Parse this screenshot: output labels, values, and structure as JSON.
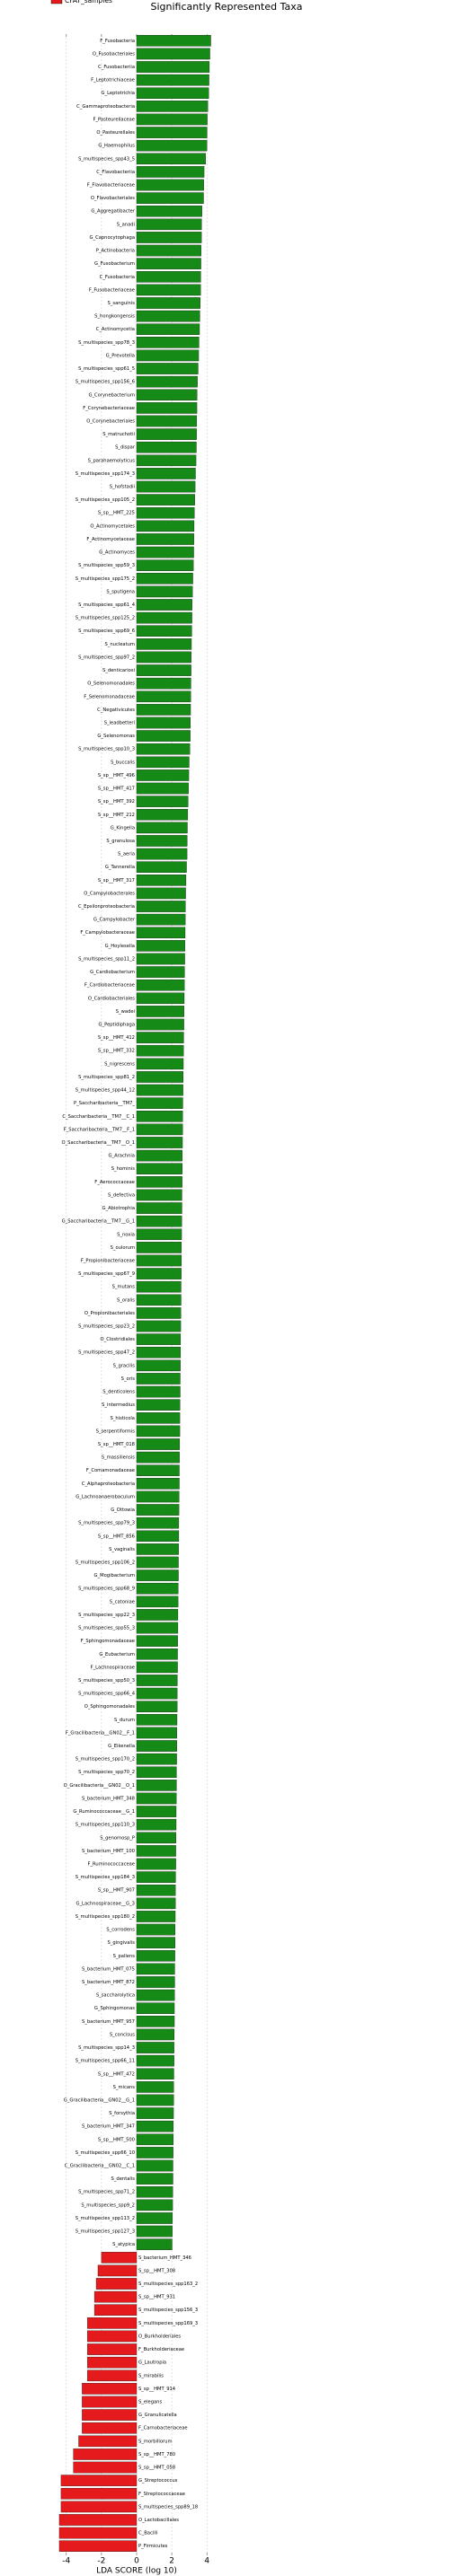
{
  "chart_data": {
    "type": "hbar_diverging",
    "title": "Significantly Represented Taxa",
    "xlabel": "LDA SCORE (log 10)",
    "legend": [
      {
        "name": "CFAT_samples",
        "color": "#e41a1c"
      }
    ],
    "positive_color": "#168a16",
    "xlim": [
      -4.5,
      4.5
    ],
    "xticks": [
      -4,
      -2,
      0,
      2,
      4
    ],
    "grid": true,
    "categories": [
      "F_Fusobacteria",
      "O_Fusobacteriales",
      "C_Fusobacteriia",
      "F_Leptotrichiaceae",
      "G_Leptotrichia",
      "C_Gammaproteobacteria",
      "F_Pasteurellaceae",
      "O_Pasteurellales",
      "G_Haemophilus",
      "S_multispecies_spp43_5",
      "C_Flavobacteriia",
      "F_Flavobacteriaceae",
      "O_Flavobacteriales",
      "G_Aggregatibacter",
      "S_anadi",
      "G_Capnocytophaga",
      "P_Actinobacteria",
      "G_Fusobacterium",
      "C_Fusobacteria",
      "F_Fusobacteriaceae",
      "S_sanguinis",
      "S_hongkongensis",
      "C_Actinomycetia",
      "S_multispecies_spp78_3",
      "G_Prevotella",
      "S_multispecies_spp61_5",
      "S_multispecies_spp156_6",
      "G_Corynebacterium",
      "F_Corynebacteriaceae",
      "O_Corynebacteriales",
      "S_matruchotii",
      "S_dispar",
      "S_parahaemolyticus",
      "S_multispecies_spp174_3",
      "S_hofstadii",
      "S_multispecies_spp105_2",
      "S_sp__HMT_225",
      "O_Actinomycetales",
      "F_Actinomycetaceae",
      "G_Actinomyces",
      "S_multispecies_spp59_3",
      "S_multispecies_spp175_2",
      "S_sputigena",
      "S_multispecies_spp61_4",
      "S_multispecies_spp125_2",
      "S_multispecies_spp69_6",
      "S_nucleatum",
      "S_multispecies_spp97_2",
      "S_denticariosi",
      "O_Selenomonadales",
      "F_Selenomonadaceae",
      "C_Negativicutes",
      "S_leadbetteri",
      "G_Selenomonas",
      "S_multispecies_spp10_3",
      "S_buccalis",
      "S_sp__HMT_496",
      "S_sp__HMT_417",
      "S_sp__HMT_392",
      "S_sp__HMT_212",
      "G_Kingella",
      "S_granulosa",
      "S_aeria",
      "G_Tannerella",
      "S_sp__HMT_317",
      "O_Campylobacterales",
      "C_Epsilonproteobacteria",
      "G_Campylobacter",
      "F_Campylobacteraceae",
      "G_Hoylesella",
      "S_multispecies_spp11_2",
      "G_Cardiobacterium",
      "F_Cardiobacteriaceae",
      "O_Cardiobacteriales",
      "S_wadei",
      "G_Peptidiphaga",
      "S_sp__HMT_412",
      "S_sp__HMT_332",
      "S_nigrescens",
      "S_multispecies_spp81_2",
      "S_multispecies_spp44_12",
      "P_Saccharibacteria__TM7_",
      "C_Saccharibacteria__TM7__C_1",
      "F_Saccharibacteria__TM7__F_1",
      "O_Saccharibacteria__TM7__O_1",
      "G_Arachnia",
      "S_hominis",
      "F_Aerococcaceae",
      "S_defectiva",
      "G_Abiotrophia",
      "G_Saccharibacteria__TM7__G_1",
      "S_noxia",
      "S_oulorum",
      "F_Propionibacteriaceae",
      "S_multispecies_spp67_9",
      "S_mutans",
      "S_oralis",
      "O_Propionibacteriales",
      "S_multispecies_spp23_2",
      "O_Clostridiales",
      "S_multispecies_spp47_2",
      "S_gracilis",
      "S_oris",
      "S_denticolens",
      "S_intermedius",
      "S_histicola",
      "S_serpentiformis",
      "S_sp__HMT_018",
      "S_massiliensis",
      "F_Comamonadaceae",
      "C_Alphaproteobacteria",
      "G_Lachnoanaerobaculum",
      "G_Ottowia",
      "S_multispecies_spp79_3",
      "S_sp__HMT_856",
      "S_vaginalis",
      "S_multispecies_spp106_2",
      "G_Mogibacterium",
      "S_multispecies_spp68_9",
      "S_catoniae",
      "S_multispecies_spp22_3",
      "S_multispecies_spp55_3",
      "F_Sphingomonadaceae",
      "G_Eubacterium",
      "F_Lachnospiraceae",
      "S_multispecies_spp50_3",
      "S_multispecies_spp66_4",
      "O_Sphingomonadales",
      "S_durum",
      "F_Gracilibacteria__GN02__F_1",
      "G_Eikenella",
      "S_multispecies_spp170_2",
      "S_multispecies_spp70_2",
      "O_Gracilibacteria__GN02__O_1",
      "S_bacterium_HMT_348",
      "G_Ruminococcaceae__G_1",
      "S_multispecies_spp110_3",
      "S_genomosp_P",
      "S_bacterium_HMT_100",
      "F_Ruminococcaceae",
      "S_multispecies_spp184_3",
      "S_sp__HMT_907",
      "G_Lachnospiraceae__G_3",
      "S_multispecies_spp180_2",
      "S_corrodens",
      "S_gingivalis",
      "S_pallens",
      "S_bacterium_HMT_075",
      "S_bacterium_HMT_872",
      "S_saccharolytica",
      "G_Sphingomonas",
      "S_bacterium_HMT_957",
      "S_concisus",
      "S_multispecies_spp14_3",
      "S_multispecies_spp66_11",
      "S_sp__HMT_472",
      "S_micans",
      "G_Gracilibacteria__GN02__G_1",
      "S_forsythia",
      "S_bacterium_HMT_347",
      "S_sp__HMT_500",
      "S_multispecies_spp66_10",
      "C_Gracilibacteria__GN02__C_1",
      "S_dentalis",
      "S_multispecies_spp71_2",
      "S_multispecies_spp9_2",
      "S_multispecies_spp113_2",
      "S_multispecies_spp127_3",
      "S_atypica",
      "S_bacterium_HMT_346",
      "S_sp__HMT_308",
      "S_multispecies_spp163_2",
      "S_sp__HMT_931",
      "S_multispecies_spp156_3",
      "S_multispecies_spp169_3",
      "O_Burkholderiales",
      "F_Burkholderiaceae",
      "G_Lautropia",
      "S_mirabilis",
      "S_sp__HMT_914",
      "S_elegans",
      "G_Granulicatella",
      "F_Carnobacteriaceae",
      "S_morbillorum",
      "S_sp__HMT_780",
      "S_sp__HMT_058",
      "G_Streptococcus",
      "F_Streptococcaceae",
      "S_multispecies_spp89_18",
      "O_Lactobacillales",
      "C_Bacilli",
      "P_Firmicutes"
    ],
    "values": [
      4.22,
      4.17,
      4.14,
      4.12,
      4.1,
      4.05,
      4.02,
      4.01,
      4.0,
      3.93,
      3.84,
      3.82,
      3.81,
      3.72,
      3.7,
      3.69,
      3.67,
      3.66,
      3.65,
      3.64,
      3.62,
      3.6,
      3.58,
      3.55,
      3.53,
      3.5,
      3.46,
      3.44,
      3.43,
      3.42,
      3.41,
      3.4,
      3.38,
      3.35,
      3.33,
      3.31,
      3.29,
      3.27,
      3.26,
      3.25,
      3.23,
      3.2,
      3.18,
      3.16,
      3.15,
      3.14,
      3.12,
      3.11,
      3.1,
      3.09,
      3.08,
      3.07,
      3.06,
      3.05,
      3.03,
      2.99,
      2.97,
      2.95,
      2.93,
      2.91,
      2.89,
      2.88,
      2.87,
      2.84,
      2.81,
      2.79,
      2.78,
      2.77,
      2.76,
      2.75,
      2.74,
      2.73,
      2.72,
      2.71,
      2.7,
      2.69,
      2.68,
      2.67,
      2.66,
      2.65,
      2.64,
      2.63,
      2.62,
      2.62,
      2.61,
      2.6,
      2.6,
      2.59,
      2.58,
      2.58,
      2.57,
      2.56,
      2.55,
      2.55,
      2.54,
      2.53,
      2.53,
      2.52,
      2.51,
      2.5,
      2.5,
      2.49,
      2.48,
      2.48,
      2.47,
      2.46,
      2.46,
      2.45,
      2.44,
      2.43,
      2.43,
      2.42,
      2.41,
      2.4,
      2.4,
      2.39,
      2.38,
      2.38,
      2.37,
      2.36,
      2.35,
      2.35,
      2.34,
      2.33,
      2.33,
      2.32,
      2.31,
      2.31,
      2.3,
      2.29,
      2.29,
      2.28,
      2.27,
      2.27,
      2.26,
      2.25,
      2.25,
      2.24,
      2.23,
      2.23,
      2.22,
      2.21,
      2.21,
      2.2,
      2.19,
      2.19,
      2.18,
      2.17,
      2.17,
      2.16,
      2.15,
      2.15,
      2.14,
      2.13,
      2.13,
      2.12,
      2.11,
      2.11,
      2.1,
      2.09,
      2.09,
      2.08,
      2.07,
      2.07,
      2.06,
      2.05,
      2.04,
      2.03,
      2.02,
      -2.0,
      -2.2,
      -2.3,
      -2.4,
      -2.4,
      -2.8,
      -2.8,
      -2.8,
      -2.8,
      -2.8,
      -3.1,
      -3.1,
      -3.1,
      -3.1,
      -3.3,
      -3.6,
      -3.6,
      -4.3,
      -4.3,
      -4.3,
      -4.4,
      -4.4,
      -4.4
    ]
  }
}
